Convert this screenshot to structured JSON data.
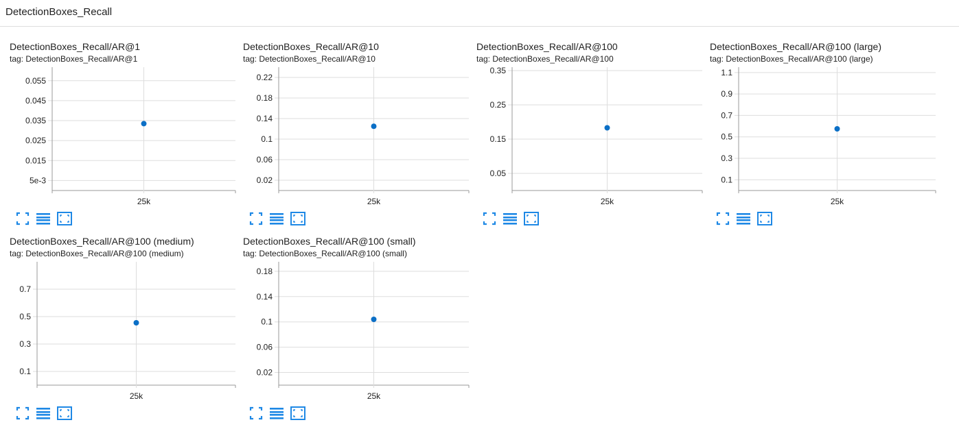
{
  "page": {
    "group_title": "DetectionBoxes_Recall"
  },
  "colors": {
    "point": "#0b6fc6",
    "grid": "#dddddd",
    "axis": "#999999",
    "icon": "#1e88e5"
  },
  "icons": {
    "fit": "fit-domain-icon",
    "log": "toggle-log-scale-icon",
    "expand": "expand-icon"
  },
  "charts": [
    {
      "title": "DetectionBoxes_Recall/AR@1",
      "tag": "tag: DetectionBoxes_Recall/AR@1",
      "chart_data": {
        "type": "scatter",
        "x": [
          "25k"
        ],
        "y": [
          0.0335
        ],
        "y_ticks": [
          "0.055",
          "0.045",
          "0.035",
          "0.025",
          "0.015",
          "5e-3"
        ],
        "y_tick_values": [
          0.055,
          0.045,
          0.035,
          0.025,
          0.015,
          0.005
        ],
        "ylim": [
          0,
          0.0618
        ]
      }
    },
    {
      "title": "DetectionBoxes_Recall/AR@10",
      "tag": "tag: DetectionBoxes_Recall/AR@10",
      "chart_data": {
        "type": "scatter",
        "x": [
          "25k"
        ],
        "y": [
          0.125
        ],
        "y_ticks": [
          "0.22",
          "0.18",
          "0.14",
          "0.1",
          "0.06",
          "0.02"
        ],
        "y_tick_values": [
          0.22,
          0.18,
          0.14,
          0.1,
          0.06,
          0.02
        ],
        "ylim": [
          0,
          0.24
        ]
      }
    },
    {
      "title": "DetectionBoxes_Recall/AR@100",
      "tag": "tag: DetectionBoxes_Recall/AR@100",
      "chart_data": {
        "type": "scatter",
        "x": [
          "25k"
        ],
        "y": [
          0.183
        ],
        "y_ticks": [
          "0.35",
          "0.25",
          "0.15",
          "0.05"
        ],
        "y_tick_values": [
          0.35,
          0.25,
          0.15,
          0.05
        ],
        "ylim": [
          0,
          0.36
        ]
      }
    },
    {
      "title": "DetectionBoxes_Recall/AR@100 (large)",
      "tag": "tag: DetectionBoxes_Recall/AR@100 (large)",
      "chart_data": {
        "type": "scatter",
        "x": [
          "25k"
        ],
        "y": [
          0.575
        ],
        "y_ticks": [
          "1.1",
          "0.9",
          "0.7",
          "0.5",
          "0.3",
          "0.1"
        ],
        "y_tick_values": [
          1.1,
          0.9,
          0.7,
          0.5,
          0.3,
          0.1
        ],
        "ylim": [
          0,
          1.15
        ]
      }
    },
    {
      "title": "DetectionBoxes_Recall/AR@100 (medium)",
      "tag": "tag: DetectionBoxes_Recall/AR@100 (medium)",
      "chart_data": {
        "type": "scatter",
        "x": [
          "25k"
        ],
        "y": [
          0.455
        ],
        "y_ticks": [
          "0.7",
          "0.5",
          "0.3",
          "0.1"
        ],
        "y_tick_values": [
          0.7,
          0.5,
          0.3,
          0.1
        ],
        "ylim": [
          0,
          0.9
        ]
      }
    },
    {
      "title": "DetectionBoxes_Recall/AR@100 (small)",
      "tag": "tag: DetectionBoxes_Recall/AR@100 (small)",
      "chart_data": {
        "type": "scatter",
        "x": [
          "25k"
        ],
        "y": [
          0.104
        ],
        "y_ticks": [
          "0.18",
          "0.14",
          "0.1",
          "0.06",
          "0.02"
        ],
        "y_tick_values": [
          0.18,
          0.14,
          0.1,
          0.06,
          0.02
        ],
        "ylim": [
          0,
          0.195
        ]
      }
    }
  ]
}
